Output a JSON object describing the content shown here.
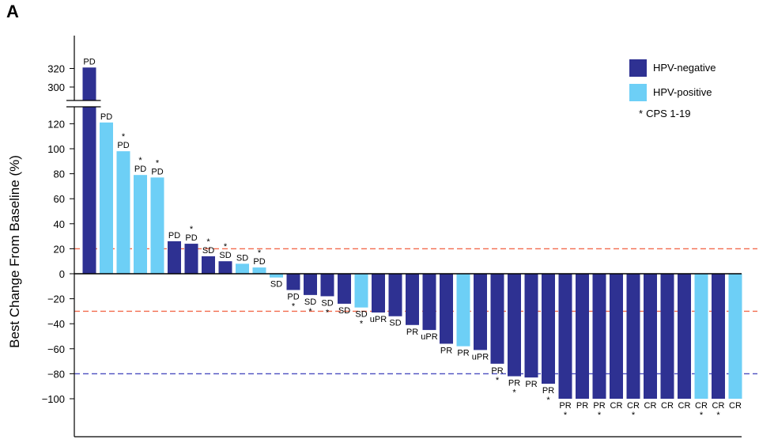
{
  "panel_label": "A",
  "chart_data": {
    "type": "bar",
    "ylabel": "Best Change From Baseline (%)",
    "xlabel": "",
    "ylim": [
      -120,
      330
    ],
    "axis_break": {
      "from": 125,
      "to": 290
    },
    "yticks": [
      320,
      300,
      120,
      100,
      80,
      60,
      40,
      20,
      0,
      -20,
      -40,
      -60,
      -80,
      -100
    ],
    "ytick_labels": [
      "320",
      "300",
      "120",
      "100",
      "80",
      "60",
      "40",
      "20",
      "0",
      "−20",
      "−40",
      "−60",
      "−80",
      "−100"
    ],
    "reference_lines": [
      {
        "value": 20,
        "color": "#f26b4e"
      },
      {
        "value": -30,
        "color": "#f26b4e"
      },
      {
        "value": -80,
        "color": "#4a4ec0"
      }
    ],
    "colors": {
      "HPV-negative": "#2e3192",
      "HPV-positive": "#6dcff6"
    },
    "legend": [
      {
        "name": "HPV-negative",
        "color": "#2e3192"
      },
      {
        "name": "HPV-positive",
        "color": "#6dcff6"
      }
    ],
    "legend_note_star": "*",
    "legend_note_text": "CPS 1-19",
    "legend_position": "top-right",
    "bars": [
      {
        "value": 321,
        "group": "HPV-negative",
        "label": "PD",
        "star": false
      },
      {
        "value": 121,
        "group": "HPV-positive",
        "label": "PD",
        "star": false
      },
      {
        "value": 98,
        "group": "HPV-positive",
        "label": "PD",
        "star": true
      },
      {
        "value": 79,
        "group": "HPV-positive",
        "label": "PD",
        "star": true
      },
      {
        "value": 77,
        "group": "HPV-positive",
        "label": "PD",
        "star": true
      },
      {
        "value": 26,
        "group": "HPV-negative",
        "label": "PD",
        "star": false
      },
      {
        "value": 24,
        "group": "HPV-negative",
        "label": "PD",
        "star": true
      },
      {
        "value": 14,
        "group": "HPV-negative",
        "label": "SD",
        "star": true
      },
      {
        "value": 10,
        "group": "HPV-negative",
        "label": "SD",
        "star": true
      },
      {
        "value": 8,
        "group": "HPV-positive",
        "label": "SD",
        "star": false
      },
      {
        "value": 5,
        "group": "HPV-positive",
        "label": "PD",
        "star": true
      },
      {
        "value": -3,
        "group": "HPV-positive",
        "label": "SD",
        "star": false
      },
      {
        "value": -13,
        "group": "HPV-negative",
        "label": "PD",
        "star": true
      },
      {
        "value": -17,
        "group": "HPV-negative",
        "label": "SD",
        "star": true
      },
      {
        "value": -18,
        "group": "HPV-negative",
        "label": "SD",
        "star": true
      },
      {
        "value": -24,
        "group": "HPV-negative",
        "label": "SD",
        "star": false
      },
      {
        "value": -27,
        "group": "HPV-positive",
        "label": "SD",
        "star": true
      },
      {
        "value": -31,
        "group": "HPV-negative",
        "label": "uPR",
        "star": false
      },
      {
        "value": -34,
        "group": "HPV-negative",
        "label": "SD",
        "star": false
      },
      {
        "value": -41,
        "group": "HPV-negative",
        "label": "PR",
        "star": false
      },
      {
        "value": -45,
        "group": "HPV-negative",
        "label": "uPR",
        "star": false
      },
      {
        "value": -56,
        "group": "HPV-negative",
        "label": "PR",
        "star": false
      },
      {
        "value": -58,
        "group": "HPV-positive",
        "label": "PR",
        "star": false
      },
      {
        "value": -61,
        "group": "HPV-negative",
        "label": "uPR",
        "star": false
      },
      {
        "value": -72,
        "group": "HPV-negative",
        "label": "PR",
        "star": true
      },
      {
        "value": -82,
        "group": "HPV-negative",
        "label": "PR",
        "star": true
      },
      {
        "value": -83,
        "group": "HPV-negative",
        "label": "PR",
        "star": false
      },
      {
        "value": -88,
        "group": "HPV-negative",
        "label": "PR",
        "star": true
      },
      {
        "value": -100,
        "group": "HPV-negative",
        "label": "PR",
        "star": true
      },
      {
        "value": -100,
        "group": "HPV-negative",
        "label": "PR",
        "star": false
      },
      {
        "value": -100,
        "group": "HPV-negative",
        "label": "PR",
        "star": true
      },
      {
        "value": -100,
        "group": "HPV-negative",
        "label": "CR",
        "star": false
      },
      {
        "value": -100,
        "group": "HPV-negative",
        "label": "CR",
        "star": true
      },
      {
        "value": -100,
        "group": "HPV-negative",
        "label": "CR",
        "star": false
      },
      {
        "value": -100,
        "group": "HPV-negative",
        "label": "CR",
        "star": false
      },
      {
        "value": -100,
        "group": "HPV-negative",
        "label": "CR",
        "star": false
      },
      {
        "value": -100,
        "group": "HPV-positive",
        "label": "CR",
        "star": true
      },
      {
        "value": -100,
        "group": "HPV-negative",
        "label": "CR",
        "star": true
      },
      {
        "value": -100,
        "group": "HPV-positive",
        "label": "CR",
        "star": false
      }
    ]
  }
}
